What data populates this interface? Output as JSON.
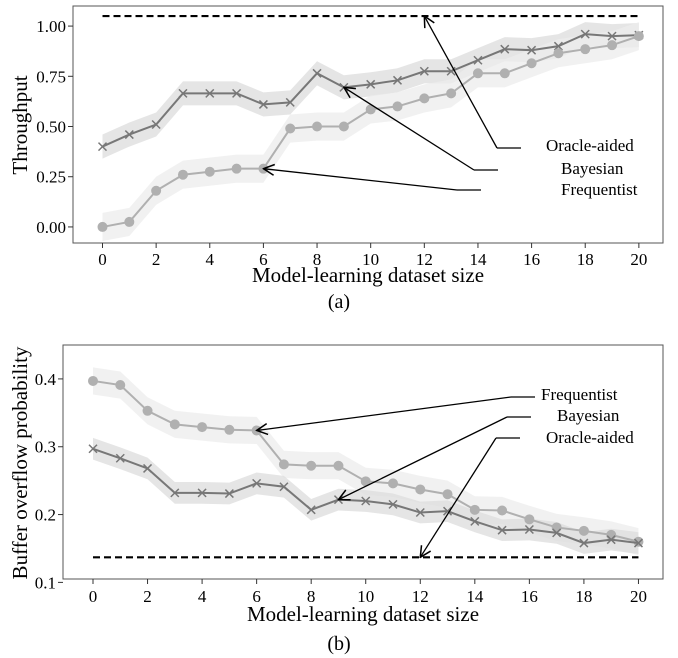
{
  "colors": {
    "bayesian": "#777777",
    "frequentist": "#b0b0b0",
    "band_bayesian": "#dcdcdc",
    "band_frequentist": "#ececec",
    "oracle": "#000000"
  },
  "chart_data": [
    {
      "type": "line",
      "caption": "(a)",
      "xlabel": "Model-learning dataset size",
      "ylabel": "Throughput",
      "xlim": [
        -1.1,
        20.9
      ],
      "ylim": [
        -0.08,
        1.1
      ],
      "xticks": [
        0,
        2,
        4,
        6,
        8,
        10,
        12,
        14,
        16,
        18,
        20
      ],
      "xtick_labels": [
        "0",
        "2",
        "4",
        "6",
        "8",
        "10",
        "12",
        "14",
        "16",
        "18",
        "20"
      ],
      "yticks": [
        0,
        0.25,
        0.5,
        0.75,
        1.0
      ],
      "ytick_labels": [
        "0.00",
        "0.25",
        "0.50",
        "0.75",
        "1.00"
      ],
      "grid": false,
      "x": [
        0,
        1,
        2,
        3,
        4,
        5,
        6,
        7,
        8,
        9,
        10,
        11,
        12,
        13,
        14,
        15,
        16,
        17,
        18,
        19,
        20
      ],
      "series": [
        {
          "name": "Bayesian",
          "marker": "x",
          "values": [
            0.4,
            0.46,
            0.51,
            0.665,
            0.665,
            0.665,
            0.61,
            0.62,
            0.765,
            0.695,
            0.71,
            0.73,
            0.775,
            0.775,
            0.83,
            0.885,
            0.88,
            0.9,
            0.96,
            0.95,
            0.955
          ],
          "band_halfwidth": 0.06
        },
        {
          "name": "Frequentist",
          "marker": "o",
          "values": [
            0.0,
            0.025,
            0.18,
            0.26,
            0.275,
            0.29,
            0.29,
            0.49,
            0.5,
            0.5,
            0.585,
            0.6,
            0.64,
            0.665,
            0.765,
            0.765,
            0.815,
            0.865,
            0.885,
            0.905,
            0.95
          ],
          "band_halfwidth": 0.07
        },
        {
          "name": "Oracle-aided",
          "style": "dashed",
          "values": [
            1.05,
            1.05,
            1.05,
            1.05,
            1.05,
            1.05,
            1.05,
            1.05,
            1.05,
            1.05,
            1.05,
            1.05,
            1.05,
            1.05,
            1.05,
            1.05,
            1.05,
            1.05,
            1.05,
            1.05,
            1.05
          ]
        }
      ],
      "annotations": [
        {
          "text": "Oracle-aided",
          "target": [
            12,
            1.05
          ]
        },
        {
          "text": "Bayesian",
          "target": [
            9,
            0.695
          ]
        },
        {
          "text": "Frequentist",
          "target": [
            6,
            0.29
          ]
        }
      ]
    },
    {
      "type": "line",
      "caption": "(b)",
      "xlabel": "Model-learning dataset size",
      "ylabel": "Buffer overflow probability",
      "xlim": [
        -1.1,
        20.9
      ],
      "ylim": [
        0.105,
        0.45
      ],
      "xticks": [
        0,
        2,
        4,
        6,
        8,
        10,
        12,
        14,
        16,
        18,
        20
      ],
      "xtick_labels": [
        "0",
        "2",
        "4",
        "6",
        "8",
        "10",
        "12",
        "14",
        "16",
        "18",
        "20"
      ],
      "yticks": [
        0.1,
        0.2,
        0.3,
        0.4
      ],
      "ytick_labels": [
        "0.1",
        "0.2",
        "0.3",
        "0.4"
      ],
      "grid": false,
      "x": [
        0,
        1,
        2,
        3,
        4,
        5,
        6,
        7,
        8,
        9,
        10,
        11,
        12,
        13,
        14,
        15,
        16,
        17,
        18,
        19,
        20
      ],
      "series": [
        {
          "name": "Frequentist",
          "marker": "o",
          "values": [
            0.397,
            0.391,
            0.353,
            0.333,
            0.329,
            0.325,
            0.324,
            0.274,
            0.272,
            0.272,
            0.249,
            0.246,
            0.237,
            0.23,
            0.207,
            0.206,
            0.193,
            0.181,
            0.176,
            0.17,
            0.16
          ],
          "band_halfwidth": 0.02
        },
        {
          "name": "Bayesian",
          "marker": "x",
          "values": [
            0.297,
            0.283,
            0.268,
            0.232,
            0.232,
            0.231,
            0.246,
            0.241,
            0.207,
            0.222,
            0.22,
            0.215,
            0.203,
            0.205,
            0.19,
            0.177,
            0.178,
            0.173,
            0.158,
            0.163,
            0.158
          ],
          "band_halfwidth": 0.016
        },
        {
          "name": "Oracle-aided",
          "style": "dashed",
          "values": [
            0.137,
            0.137,
            0.137,
            0.137,
            0.137,
            0.137,
            0.137,
            0.137,
            0.137,
            0.137,
            0.137,
            0.137,
            0.137,
            0.137,
            0.137,
            0.137,
            0.137,
            0.137,
            0.137,
            0.137,
            0.137
          ]
        }
      ],
      "annotations": [
        {
          "text": "Frequentist",
          "target": [
            6,
            0.324
          ]
        },
        {
          "text": "Bayesian",
          "target": [
            9,
            0.222
          ]
        },
        {
          "text": "Oracle-aided",
          "target": [
            12,
            0.137
          ]
        }
      ]
    }
  ]
}
